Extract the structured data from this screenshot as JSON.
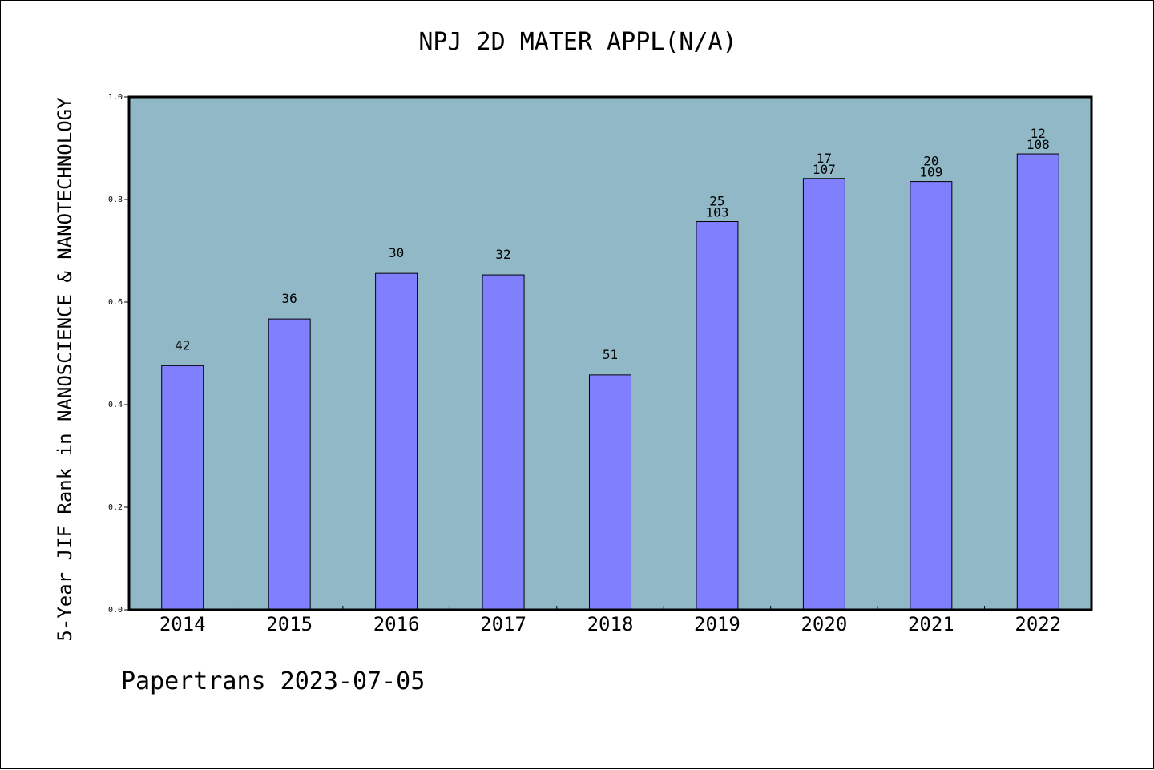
{
  "chart_data": {
    "type": "bar",
    "title": "NPJ 2D MATER APPL(N/A)",
    "ylabel": "5-Year JIF Rank in NANOSCIENCE & NANOTECHNOLOGY",
    "xlabel": "",
    "ylim": [
      0.0,
      1.0
    ],
    "yticks": [
      "0.0",
      "0.2",
      "0.4",
      "0.6",
      "0.8",
      "1.0"
    ],
    "categories": [
      "2014",
      "2015",
      "2016",
      "2017",
      "2018",
      "2019",
      "2020",
      "2021",
      "2022"
    ],
    "values": [
      0.476,
      0.567,
      0.656,
      0.653,
      0.458,
      0.757,
      0.841,
      0.835,
      0.889
    ],
    "labels_top": [
      "",
      "",
      "",
      "",
      "",
      "25",
      "17",
      "20",
      "12"
    ],
    "labels_bottom": [
      "42",
      "36",
      "30",
      "32",
      "51",
      "103",
      "107",
      "109",
      "108"
    ],
    "grid": false,
    "colors": {
      "plot_background": "#90b8c6",
      "bar": "#8080ff"
    }
  },
  "footer": "Papertrans 2023-07-05"
}
